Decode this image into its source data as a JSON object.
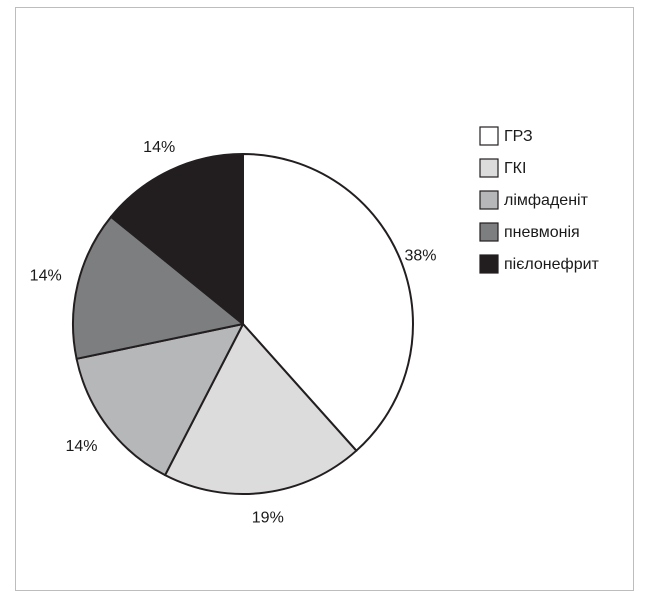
{
  "chart_data": {
    "type": "pie",
    "categories": [
      "ГРЗ",
      "ГКІ",
      "лімфаденіт",
      "пневмонія",
      "пієлонефрит"
    ],
    "values": [
      38,
      19,
      14,
      14,
      14
    ],
    "value_labels": [
      "38%",
      "19%",
      "14%",
      "14%",
      "14%"
    ],
    "colors": [
      "#ffffff",
      "#dcdcdc",
      "#b5b7b9",
      "#7d7e80",
      "#221e1f"
    ],
    "start_angle": "12 o'clock",
    "direction": "clockwise",
    "legend_position": "right",
    "title": "",
    "edge_color": "#231f20"
  }
}
